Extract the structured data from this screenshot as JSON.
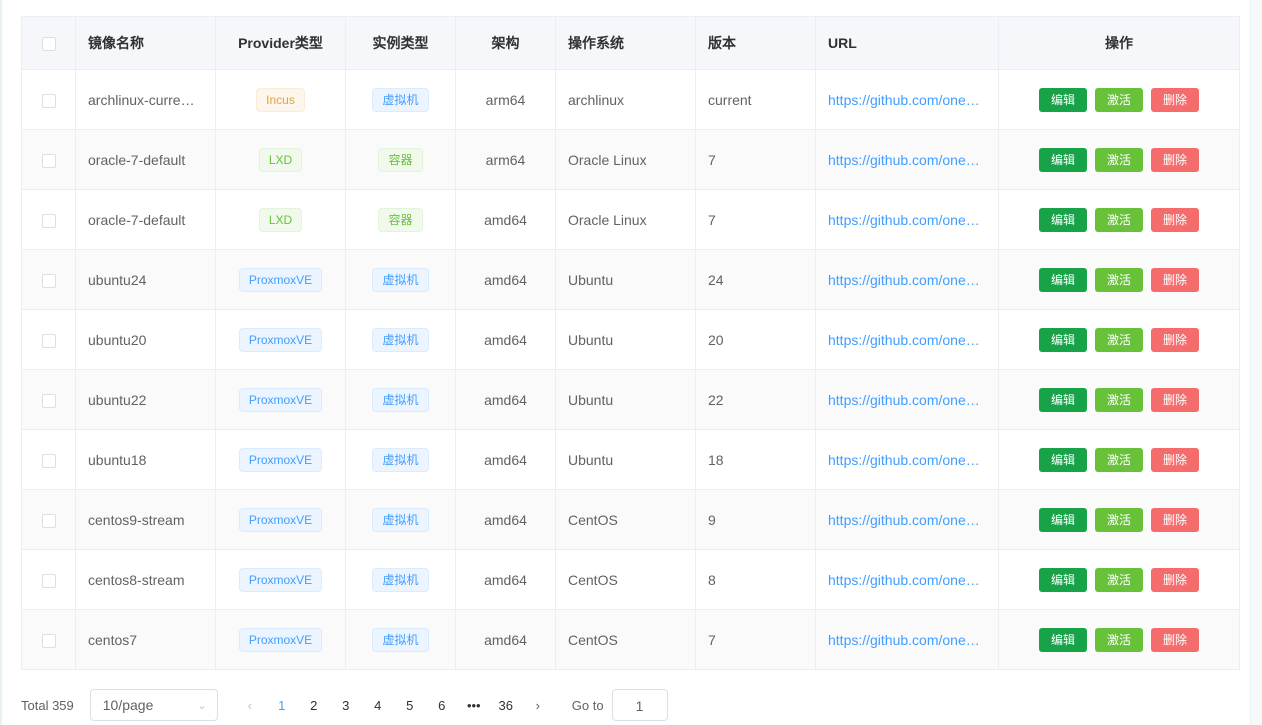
{
  "table": {
    "headers": [
      "镜像名称",
      "Provider类型",
      "实例类型",
      "架构",
      "操作系统",
      "版本",
      "URL",
      "操作"
    ],
    "rows": [
      {
        "name": "archlinux-curre…",
        "provider": "Incus",
        "ptype": "incus",
        "instance": "虚拟机",
        "itype": "vm",
        "arch": "arm64",
        "os": "archlinux",
        "version": "current",
        "url": "https://github.com/onecl…"
      },
      {
        "name": "oracle-7-default",
        "provider": "LXD",
        "ptype": "lxd",
        "instance": "容器",
        "itype": "ct",
        "arch": "arm64",
        "os": "Oracle Linux",
        "version": "7",
        "url": "https://github.com/onecl…"
      },
      {
        "name": "oracle-7-default",
        "provider": "LXD",
        "ptype": "lxd",
        "instance": "容器",
        "itype": "ct",
        "arch": "amd64",
        "os": "Oracle Linux",
        "version": "7",
        "url": "https://github.com/onecl…"
      },
      {
        "name": "ubuntu24",
        "provider": "ProxmoxVE",
        "ptype": "pve",
        "instance": "虚拟机",
        "itype": "vm",
        "arch": "amd64",
        "os": "Ubuntu",
        "version": "24",
        "url": "https://github.com/onecl…"
      },
      {
        "name": "ubuntu20",
        "provider": "ProxmoxVE",
        "ptype": "pve",
        "instance": "虚拟机",
        "itype": "vm",
        "arch": "amd64",
        "os": "Ubuntu",
        "version": "20",
        "url": "https://github.com/onecl…"
      },
      {
        "name": "ubuntu22",
        "provider": "ProxmoxVE",
        "ptype": "pve",
        "instance": "虚拟机",
        "itype": "vm",
        "arch": "amd64",
        "os": "Ubuntu",
        "version": "22",
        "url": "https://github.com/onecl…"
      },
      {
        "name": "ubuntu18",
        "provider": "ProxmoxVE",
        "ptype": "pve",
        "instance": "虚拟机",
        "itype": "vm",
        "arch": "amd64",
        "os": "Ubuntu",
        "version": "18",
        "url": "https://github.com/onecl…"
      },
      {
        "name": "centos9-stream",
        "provider": "ProxmoxVE",
        "ptype": "pve",
        "instance": "虚拟机",
        "itype": "vm",
        "arch": "amd64",
        "os": "CentOS",
        "version": "9",
        "url": "https://github.com/onecl…"
      },
      {
        "name": "centos8-stream",
        "provider": "ProxmoxVE",
        "ptype": "pve",
        "instance": "虚拟机",
        "itype": "vm",
        "arch": "amd64",
        "os": "CentOS",
        "version": "8",
        "url": "https://github.com/onecl…"
      },
      {
        "name": "centos7",
        "provider": "ProxmoxVE",
        "ptype": "pve",
        "instance": "虚拟机",
        "itype": "vm",
        "arch": "amd64",
        "os": "CentOS",
        "version": "7",
        "url": "https://github.com/onecl…"
      }
    ],
    "actions": {
      "edit": "编辑",
      "activate": "激活",
      "delete": "删除"
    }
  },
  "colors": {
    "edit": "#18a349",
    "activate": "#67c23a",
    "delete": "#f56c6c",
    "link": "#409eff"
  },
  "pagination": {
    "total": "Total 359",
    "page_size": "10/page",
    "pages": [
      "1",
      "2",
      "3",
      "4",
      "5",
      "6",
      "•••",
      "36"
    ],
    "current": "1",
    "goto_label": "Go to",
    "goto_value": "1"
  }
}
